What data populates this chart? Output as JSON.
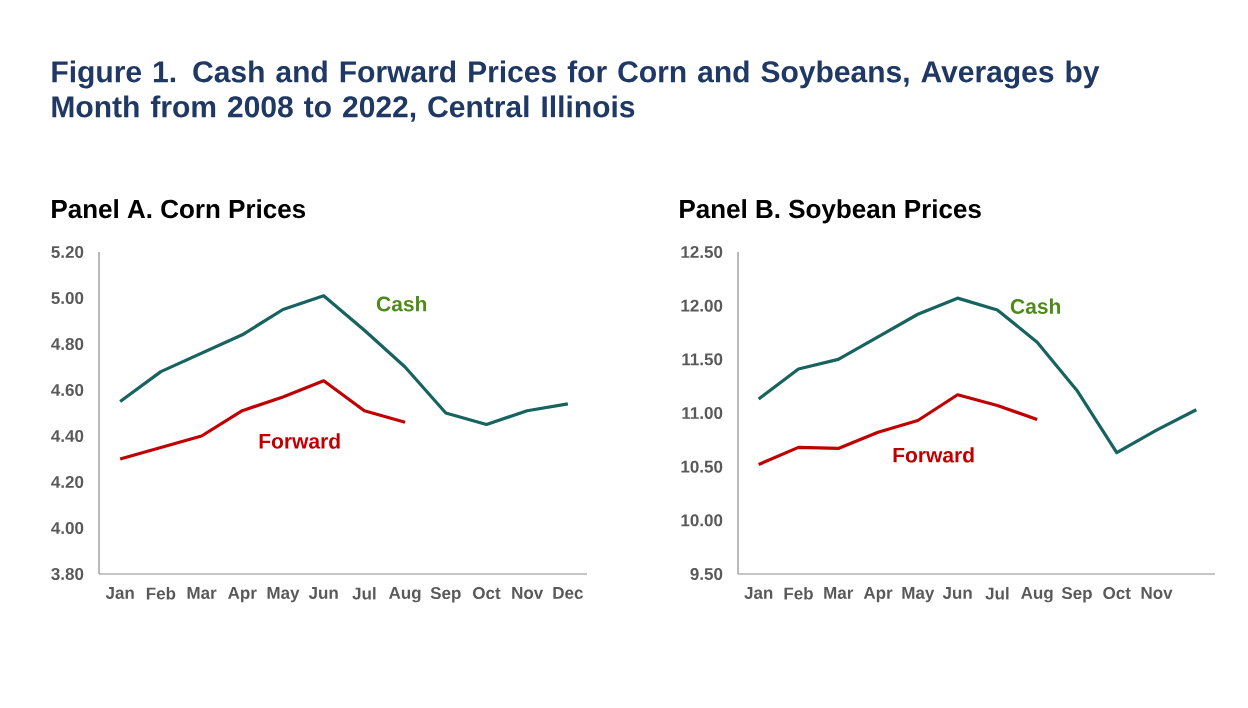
{
  "chart_data": [
    {
      "type": "line",
      "title": "Figure 1. Cash and Forward Prices for Corn and Soybeans, Averages by Month from 2008 to 2022, Central Illinois",
      "subtitle": "Panel A.  Corn Prices",
      "categories": [
        "Jan",
        "Feb",
        "Mar",
        "Apr",
        "May",
        "Jun",
        "Jul",
        "Aug",
        "Sep",
        "Oct",
        "Nov",
        "Dec"
      ],
      "ylim": [
        3.8,
        5.2
      ],
      "yticks": [
        {
          "value": 3.8,
          "label": "3.80"
        },
        {
          "value": 4.0,
          "label": "4.00"
        },
        {
          "value": 4.2,
          "label": "4.20"
        },
        {
          "value": 4.4,
          "label": "4.40"
        },
        {
          "value": 4.6,
          "label": "4.60"
        },
        {
          "value": 4.8,
          "label": "4.80"
        },
        {
          "value": 5.0,
          "label": "5.00"
        },
        {
          "value": 5.2,
          "label": "5.20"
        }
      ],
      "series": [
        {
          "name": "Cash",
          "color": "#17635f",
          "values": [
            4.55,
            4.68,
            4.76,
            4.84,
            4.95,
            5.01,
            4.86,
            4.7,
            4.5,
            4.45,
            4.51,
            4.54
          ]
        },
        {
          "name": "Forward",
          "color": "#c00000",
          "values": [
            4.3,
            4.35,
            4.4,
            4.51,
            4.57,
            4.64,
            4.51,
            4.46,
            null,
            null,
            null,
            null
          ]
        }
      ]
    },
    {
      "type": "line",
      "title": "Panel B. Soybean Prices",
      "categories": [
        "Jan",
        "Feb",
        "Mar",
        "Apr",
        "May",
        "Jun",
        "Jul",
        "Aug",
        "Sep",
        "Oct",
        "Nov",
        null
      ],
      "ylim": [
        9.5,
        12.5
      ],
      "yticks": [
        {
          "value": 9.5,
          "label": "9.50"
        },
        {
          "value": 10.0,
          "label": "10.00"
        },
        {
          "value": 10.5,
          "label": "10.50"
        },
        {
          "value": 11.0,
          "label": "11.00"
        },
        {
          "value": 11.5,
          "label": "11.50"
        },
        {
          "value": 12.0,
          "label": "12.00"
        },
        {
          "value": 12.5,
          "label": "12.50"
        }
      ],
      "series": [
        {
          "name": "Cash",
          "color": "#17635f",
          "values": [
            11.13,
            11.41,
            11.5,
            11.71,
            11.92,
            12.07,
            11.96,
            11.66,
            11.21,
            10.63,
            10.84,
            11.03
          ]
        },
        {
          "name": "Forward",
          "color": "#c00000",
          "values": [
            10.52,
            10.68,
            10.67,
            10.82,
            10.93,
            11.17,
            11.07,
            10.94,
            null,
            null,
            null,
            null
          ]
        }
      ]
    }
  ]
}
